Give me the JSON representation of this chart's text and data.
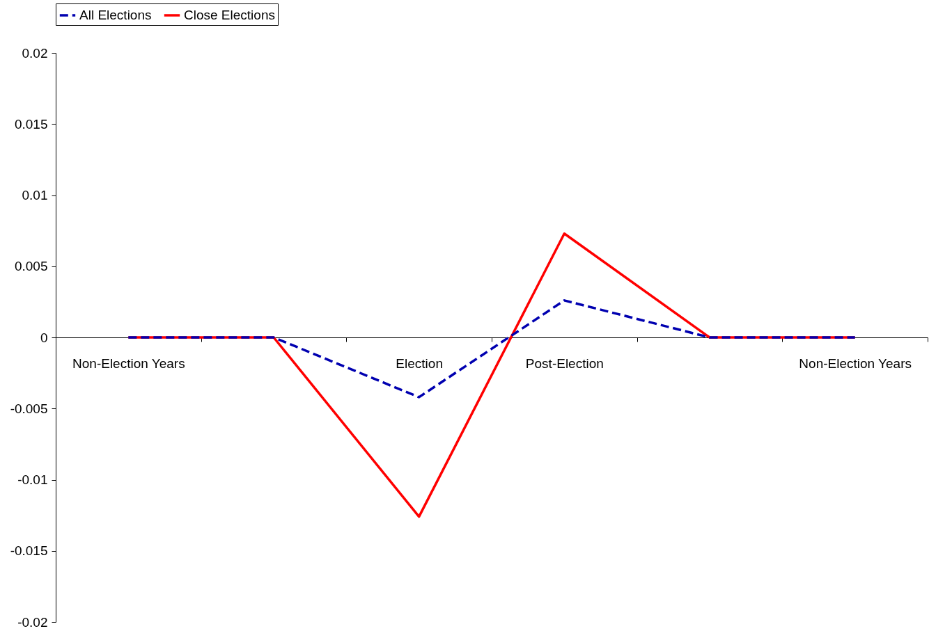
{
  "chart_data": {
    "type": "line",
    "categories": [
      "Non-Election Years",
      null,
      "Election",
      "Post-Election",
      null,
      "Non-Election Years"
    ],
    "series": [
      {
        "name": "All Elections",
        "color": "#0000b0",
        "line_style": "dashed",
        "values": [
          0,
          0,
          -0.0042,
          0.0026,
          0,
          0
        ]
      },
      {
        "name": "Close Elections",
        "color": "#ff0000",
        "line_style": "solid",
        "values": [
          0,
          0,
          -0.0126,
          0.0073,
          0,
          0
        ]
      }
    ],
    "ylim": [
      -0.02,
      0.02
    ],
    "yticks": [
      -0.02,
      -0.015,
      -0.01,
      -0.005,
      0,
      0.005,
      0.01,
      0.015,
      0.02
    ],
    "grid": false,
    "legend": "top",
    "marker": "none"
  }
}
